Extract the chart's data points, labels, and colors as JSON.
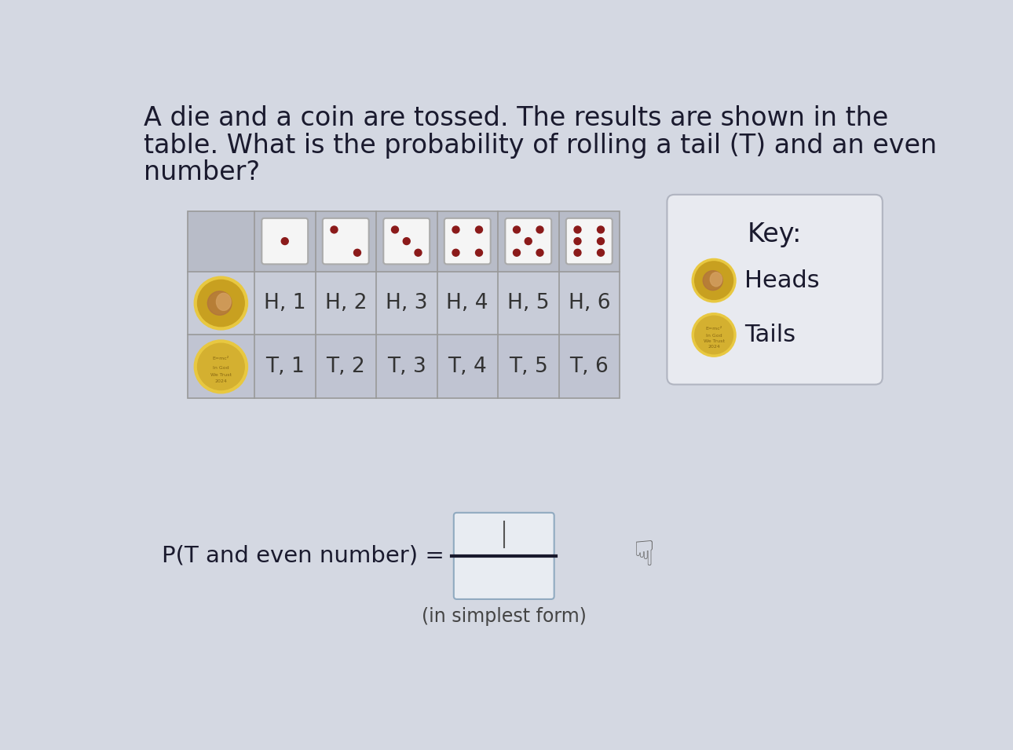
{
  "bg_color": "#d4d8e2",
  "title_lines": [
    "A die and a coin are tossed. The results are shown in the",
    "table. What is the probability of rolling a tail (T) and an even",
    "number?"
  ],
  "title_fontsize": 24,
  "table_col_labels": [
    "H, 1",
    "H, 2",
    "H, 3",
    "H, 4",
    "H, 5",
    "H, 6"
  ],
  "table_row_labels": [
    "T, 1",
    "T, 2",
    "T, 3",
    "T, 4",
    "T, 5",
    "T, 6"
  ],
  "cell_text_color": "#333333",
  "key_title": "Key:",
  "key_heads": "Heads",
  "key_tails": "Tails",
  "fraction_label": "P(T and even number) =",
  "simplest_form": "(in simplest form)",
  "die_dot_color": "#8B1A1A",
  "die_bg": "#f5f5f5",
  "die_border": "#aaaaaa",
  "table_header_bg": "#b8bcc8",
  "table_row1_bg": "#c8ccd8",
  "table_row2_bg": "#c0c4d2",
  "coin_outer_gold": "#e8c840",
  "coin_inner_gold": "#c8a020",
  "coin_face_brown": "#b07040",
  "coin_tail_lighter": "#d4b030",
  "key_box_bg": "#e8eaf0",
  "key_box_border": "#b0b4c0",
  "frac_box_bg": "#e8ecf2",
  "frac_box_border": "#90aac0"
}
